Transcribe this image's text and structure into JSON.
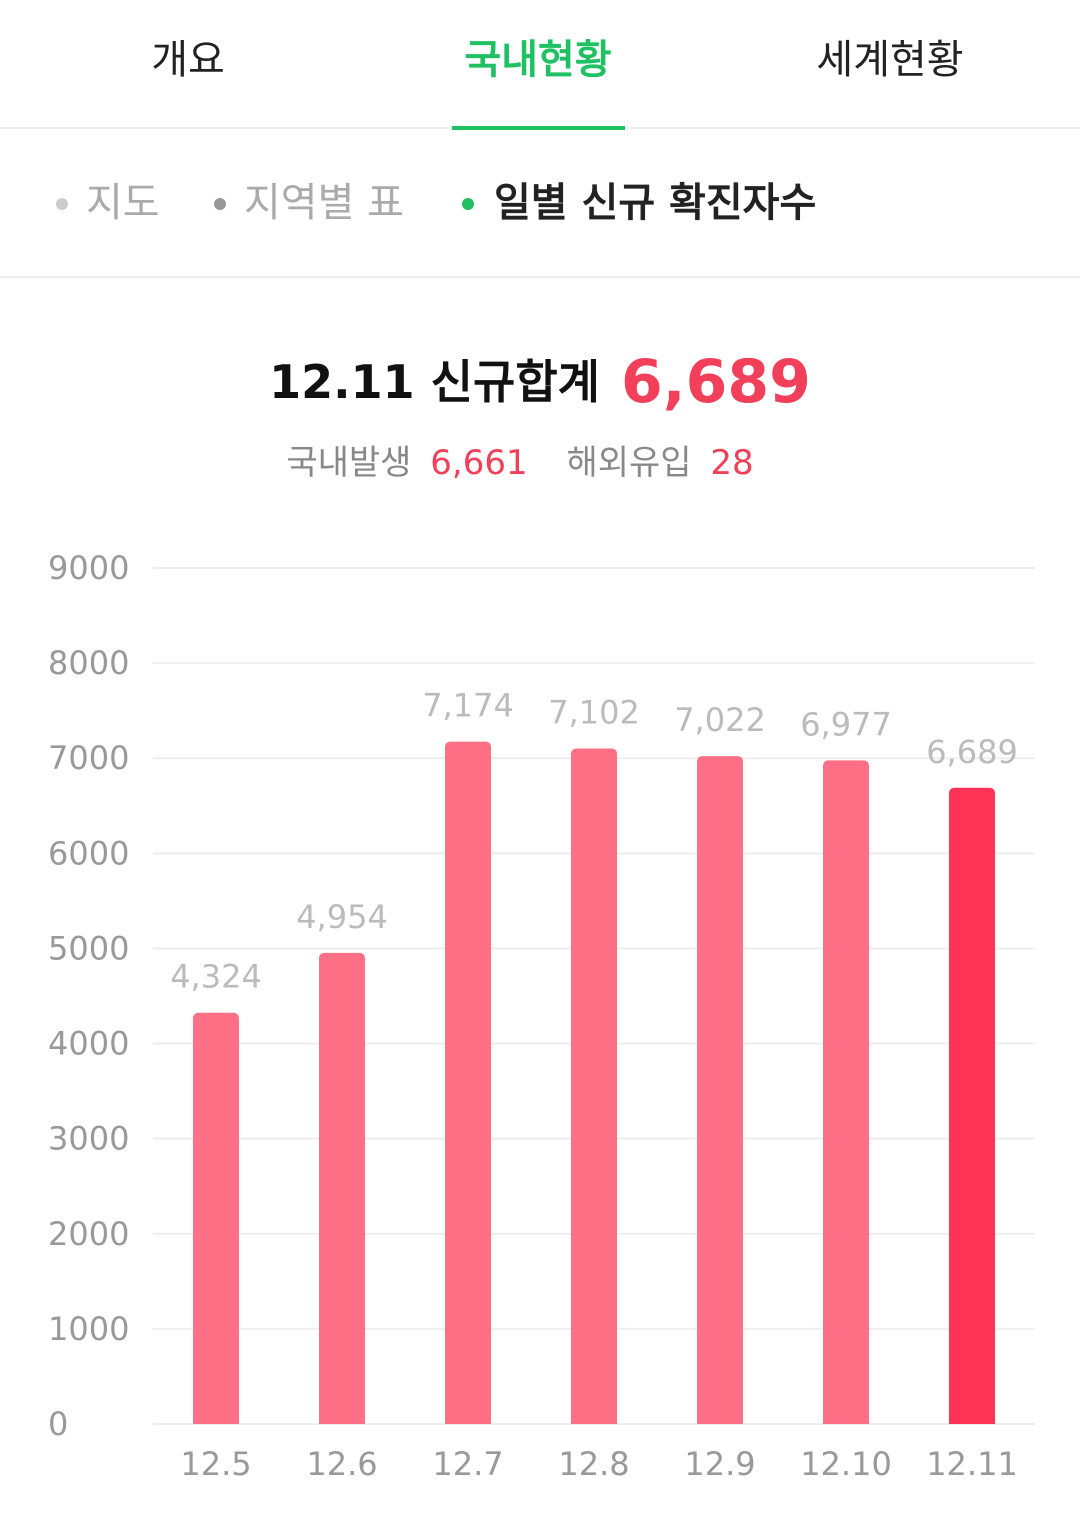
{
  "tabs": [
    "개요",
    "국내현황",
    "세계현황"
  ],
  "subtabs": [
    "지도",
    "지역별 표",
    "일별 신규 확진자수"
  ],
  "summary": {
    "title": "12.11 신규합계",
    "total": "6,689",
    "domestic_label": "국내발생",
    "domestic": "6,661",
    "overseas_label": "해외유입",
    "overseas": "28"
  },
  "chart_data": {
    "type": "bar",
    "categories": [
      "12.5",
      "12.6",
      "12.7",
      "12.8",
      "12.9",
      "12.10",
      "12.11"
    ],
    "values": [
      4324,
      4954,
      7174,
      7102,
      7022,
      6977,
      6689
    ],
    "value_labels": [
      "4,324",
      "4,954",
      "7,174",
      "7,102",
      "7,022",
      "6,977",
      "6,689"
    ],
    "colors": [
      "#ff6f85",
      "#ff6f85",
      "#ff6f85",
      "#ff6f85",
      "#ff6f85",
      "#ff6f85",
      "#ff3355"
    ],
    "ylim": [
      0,
      9000
    ],
    "yticks": [
      0,
      1000,
      2000,
      3000,
      4000,
      5000,
      6000,
      7000,
      8000,
      9000
    ],
    "grid": true
  }
}
